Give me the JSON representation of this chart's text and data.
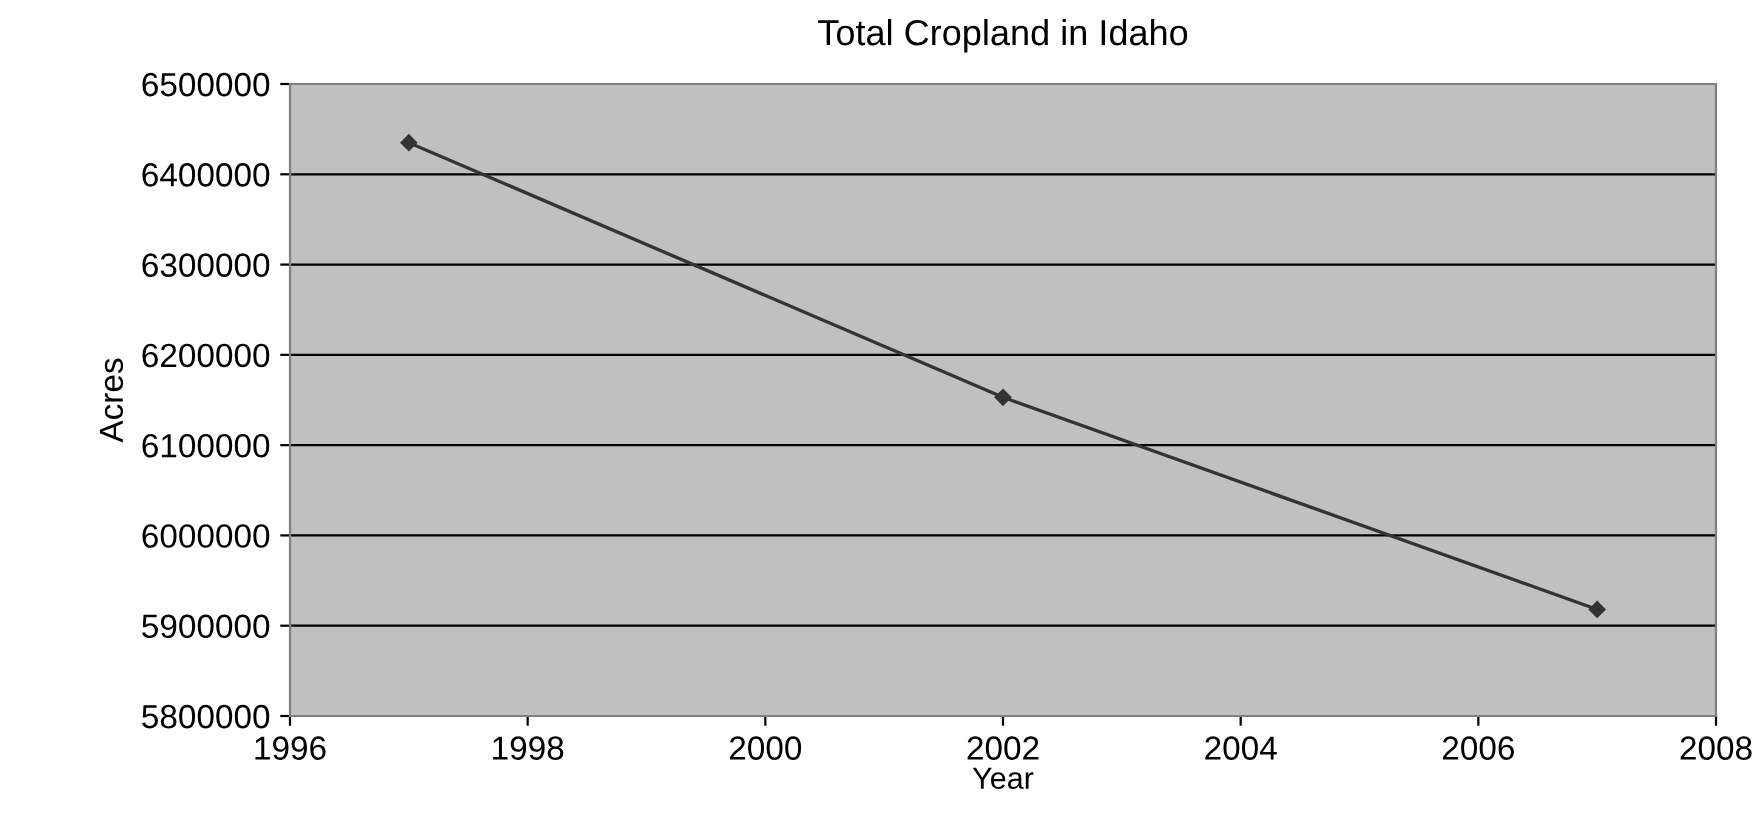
{
  "chart_data": {
    "type": "line",
    "title": "Total Cropland in Idaho",
    "xlabel": "Year",
    "ylabel": "Acres",
    "x": [
      1997,
      2002,
      2007
    ],
    "series": [
      {
        "color": "#333333",
        "values": [
          6435000,
          6153000,
          5918000
        ]
      }
    ],
    "xlim": [
      1996,
      2008
    ],
    "xticks": [
      1996,
      1998,
      2000,
      2002,
      2004,
      2006,
      2008
    ],
    "ylim": [
      5800000,
      6500000
    ],
    "yticks": [
      5800000,
      5900000,
      6000000,
      6100000,
      6200000,
      6300000,
      6400000,
      6500000
    ],
    "grid": "y",
    "marker": "diamond",
    "line_style": "solid",
    "legend": false
  }
}
